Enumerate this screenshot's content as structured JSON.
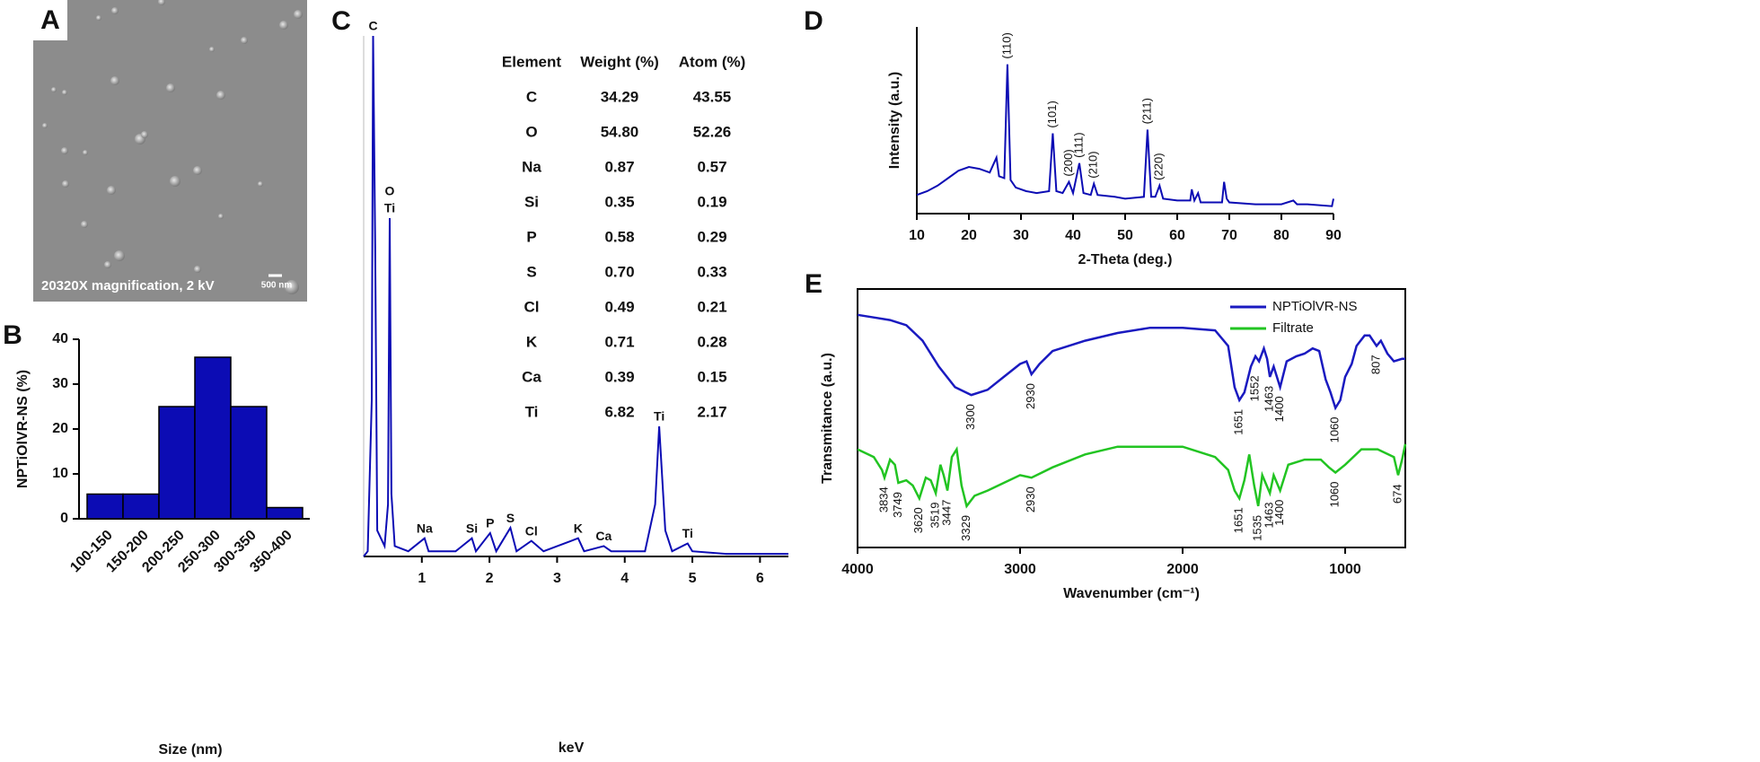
{
  "image": {
    "panel": "A",
    "caption": "20320X magnification, 2 kV",
    "scale_bar": "500 nm"
  },
  "chart_data": [
    {
      "type": "bar",
      "panel": "B",
      "categories": [
        "100-150",
        "150-200",
        "200-250",
        "250-300",
        "300-350",
        "350-400"
      ],
      "values": [
        5.5,
        5.5,
        25,
        36,
        25,
        2.5
      ],
      "color": "#0c0cb4",
      "ylim": [
        0,
        40
      ],
      "yticks": [
        0,
        10,
        20,
        30,
        40
      ],
      "y_label": "NPTiOlVR-NS (%)",
      "x_label": "Size (nm)"
    },
    {
      "type": "line",
      "panel": "C",
      "x_label": "keV",
      "xlim": [
        0.14,
        6.42
      ],
      "xticks": [
        1,
        2,
        3,
        4,
        5,
        6
      ],
      "ylim": [
        0,
        100
      ],
      "series": [
        {
          "color": "#0c0cb4",
          "x": [
            0.14,
            0.2,
            0.26,
            0.28,
            0.31,
            0.34,
            0.45,
            0.5,
            0.525,
            0.55,
            0.6,
            0.8,
            1.04,
            1.1,
            1.5,
            1.74,
            1.8,
            2.01,
            2.1,
            2.31,
            2.4,
            2.62,
            2.8,
            3.31,
            3.4,
            3.69,
            3.8,
            4.3,
            4.45,
            4.51,
            4.6,
            4.7,
            4.93,
            5.0,
            5.5,
            6.0,
            6.42
          ],
          "values": [
            0,
            1,
            30,
            100,
            60,
            5,
            2,
            10,
            65,
            12,
            2,
            1,
            3.5,
            1,
            1,
            3.5,
            1,
            4.5,
            1,
            5.5,
            1,
            3,
            1,
            3.5,
            1,
            2,
            1,
            1,
            10,
            25,
            5,
            1,
            2.5,
            1,
            0.5,
            0.5,
            0.5
          ]
        }
      ],
      "peak_labels": [
        {
          "label": "C",
          "x": 0.28
        },
        {
          "label": "Ti",
          "x": 0.525
        },
        {
          "label": "O",
          "x": 0.525
        },
        {
          "label": "Na",
          "x": 1.04
        },
        {
          "label": "Si",
          "x": 1.74
        },
        {
          "label": "P",
          "x": 2.01
        },
        {
          "label": "S",
          "x": 2.31
        },
        {
          "label": "Cl",
          "x": 2.62
        },
        {
          "label": "K",
          "x": 3.31
        },
        {
          "label": "Ca",
          "x": 3.69
        },
        {
          "label": "Ti",
          "x": 4.51
        },
        {
          "label": "Ti",
          "x": 4.93
        }
      ],
      "table": {
        "header": [
          "Element",
          "Weight (%)",
          "Atom (%)"
        ],
        "rows": [
          [
            "C",
            "34.29",
            "43.55"
          ],
          [
            "O",
            "54.80",
            "52.26"
          ],
          [
            "Na",
            "0.87",
            "0.57"
          ],
          [
            "Si",
            "0.35",
            "0.19"
          ],
          [
            "P",
            "0.58",
            "0.29"
          ],
          [
            "S",
            "0.70",
            "0.33"
          ],
          [
            "Cl",
            "0.49",
            "0.21"
          ],
          [
            "K",
            "0.71",
            "0.28"
          ],
          [
            "Ca",
            "0.39",
            "0.15"
          ],
          [
            "Ti",
            "6.82",
            "2.17"
          ]
        ]
      }
    },
    {
      "type": "line",
      "panel": "D",
      "x_label": "2-Theta (deg.)",
      "y_label": "Intensity (a.u.)",
      "xlim": [
        10,
        90
      ],
      "xticks": [
        10,
        20,
        30,
        40,
        50,
        60,
        70,
        80,
        90
      ],
      "ylim": [
        0,
        100
      ],
      "series": [
        {
          "color": "#0c0cb4",
          "x": [
            10,
            12,
            14,
            16,
            18,
            20,
            22,
            24,
            25.3,
            25.8,
            26.8,
            27.4,
            28,
            29,
            31,
            33,
            35.4,
            36.1,
            36.8,
            38,
            39.2,
            40,
            41.2,
            42,
            43.4,
            44,
            44.7,
            48,
            50,
            53.6,
            54.3,
            55,
            55.8,
            56.6,
            57.3,
            60,
            62.5,
            62.8,
            63.3,
            64,
            64.5,
            66,
            68.6,
            69,
            69.5,
            70,
            75,
            80,
            82.3,
            83,
            85,
            89.7,
            90
          ],
          "values": [
            10,
            12,
            15,
            19,
            23,
            25,
            24,
            22,
            30,
            20,
            19,
            80,
            18,
            14,
            12,
            11,
            12,
            43,
            12,
            11,
            17,
            11,
            27,
            11,
            10,
            16,
            10,
            9,
            8,
            9,
            45,
            9,
            9,
            15,
            8,
            7,
            7,
            13,
            7,
            11,
            6,
            6,
            6,
            17,
            8,
            6,
            5,
            5,
            7,
            5,
            5,
            4,
            8
          ]
        }
      ],
      "peak_labels": [
        {
          "label": "(110)",
          "x": 27.4
        },
        {
          "label": "(101)",
          "x": 36.1
        },
        {
          "label": "(200)",
          "x": 39.2
        },
        {
          "label": "(111)",
          "x": 41.2
        },
        {
          "label": "(210)",
          "x": 44
        },
        {
          "label": "(211)",
          "x": 54.3
        },
        {
          "label": "(220)",
          "x": 56.6
        }
      ]
    },
    {
      "type": "line",
      "panel": "E",
      "x_label": "Wavenumber (cm⁻¹)",
      "y_label": "Transmitance (a.u.)",
      "xlim": [
        4000,
        630
      ],
      "xticks": [
        4000,
        3000,
        2000,
        1000
      ],
      "ylim": [
        0,
        100
      ],
      "legend": "upper right",
      "series": [
        {
          "name": "NPTiOlVR-NS",
          "color": "#1a1ac0",
          "x": [
            4000,
            3900,
            3800,
            3700,
            3600,
            3500,
            3400,
            3300,
            3200,
            3100,
            3000,
            2960,
            2930,
            2880,
            2800,
            2600,
            2400,
            2200,
            2000,
            1800,
            1720,
            1680,
            1651,
            1620,
            1580,
            1552,
            1530,
            1500,
            1480,
            1463,
            1440,
            1400,
            1360,
            1300,
            1250,
            1200,
            1160,
            1120,
            1090,
            1060,
            1030,
            1000,
            960,
            930,
            880,
            850,
            807,
            780,
            740,
            700,
            650,
            630
          ],
          "values": [
            90,
            89,
            88,
            86,
            80,
            70,
            62,
            59,
            61,
            66,
            71,
            72,
            67,
            71,
            76,
            80,
            83,
            85,
            85,
            84,
            78,
            62,
            57,
            60,
            70,
            74,
            72,
            77,
            73,
            66,
            70,
            62,
            72,
            74,
            75,
            77,
            76,
            65,
            60,
            54,
            57,
            66,
            71,
            78,
            82,
            82,
            78,
            80,
            75,
            72,
            73,
            73
          ],
          "peak_labels": [
            3300,
            2930,
            1651,
            1552,
            1463,
            1400,
            1060,
            807
          ]
        },
        {
          "name": "Filtrate",
          "color": "#22c422",
          "x": [
            4000,
            3900,
            3850,
            3834,
            3800,
            3770,
            3749,
            3700,
            3660,
            3620,
            3580,
            3550,
            3519,
            3490,
            3470,
            3447,
            3420,
            3390,
            3360,
            3329,
            3280,
            3200,
            3100,
            3000,
            2930,
            2800,
            2600,
            2400,
            2200,
            2000,
            1900,
            1800,
            1720,
            1680,
            1651,
            1620,
            1590,
            1560,
            1535,
            1510,
            1463,
            1440,
            1400,
            1350,
            1250,
            1150,
            1100,
            1060,
            1000,
            900,
            800,
            700,
            674,
            650,
            630
          ],
          "values": [
            38,
            35,
            30,
            27,
            34,
            32,
            25,
            26,
            24,
            19,
            27,
            26,
            21,
            32,
            28,
            22,
            35,
            38,
            24,
            16,
            20,
            22,
            25,
            28,
            27,
            31,
            36,
            39,
            39,
            39,
            37,
            35,
            30,
            22,
            19,
            26,
            36,
            24,
            16,
            28,
            21,
            28,
            22,
            32,
            34,
            34,
            31,
            29,
            32,
            38,
            38,
            35,
            28,
            34,
            40
          ],
          "peak_labels": [
            3834,
            3749,
            3620,
            3519,
            3447,
            3329,
            2930,
            1651,
            1535,
            1463,
            1400,
            1060,
            674
          ]
        }
      ]
    }
  ]
}
